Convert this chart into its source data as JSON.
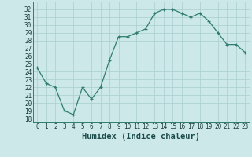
{
  "x": [
    0,
    1,
    2,
    3,
    4,
    5,
    6,
    7,
    8,
    9,
    10,
    11,
    12,
    13,
    14,
    15,
    16,
    17,
    18,
    19,
    20,
    21,
    22,
    23
  ],
  "y": [
    24.5,
    22.5,
    22.0,
    19.0,
    18.5,
    22.0,
    20.5,
    22.0,
    25.5,
    28.5,
    28.5,
    29.0,
    29.5,
    31.5,
    32.0,
    32.0,
    31.5,
    31.0,
    31.5,
    30.5,
    29.0,
    27.5,
    27.5,
    26.5
  ],
  "xlabel": "Humidex (Indice chaleur)",
  "line_color": "#2e7d6e",
  "marker": "+",
  "marker_size": 3,
  "bg_color": "#cce8e8",
  "grid_color": "#aacece",
  "ylim": [
    17.5,
    33.0
  ],
  "xlim": [
    -0.5,
    23.5
  ],
  "yticks": [
    18,
    19,
    20,
    21,
    22,
    23,
    24,
    25,
    26,
    27,
    28,
    29,
    30,
    31,
    32
  ],
  "xticks": [
    0,
    1,
    2,
    3,
    4,
    5,
    6,
    7,
    8,
    9,
    10,
    11,
    12,
    13,
    14,
    15,
    16,
    17,
    18,
    19,
    20,
    21,
    22,
    23
  ],
  "tick_label_fontsize": 5.5,
  "xlabel_fontsize": 7.5
}
